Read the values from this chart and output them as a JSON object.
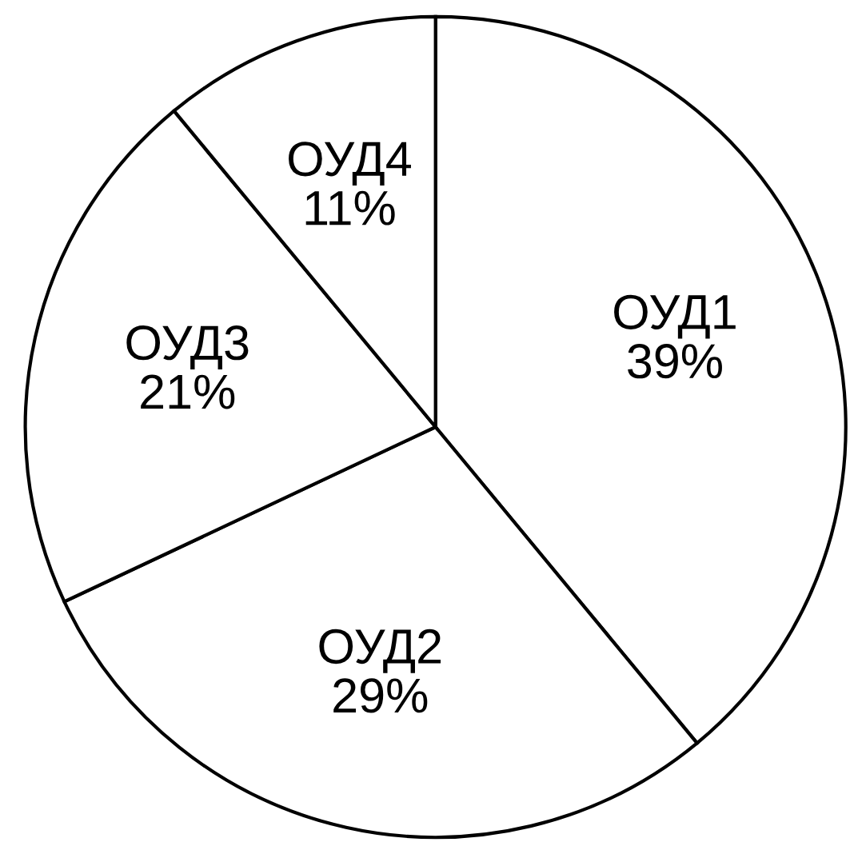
{
  "chart_data": {
    "type": "pie",
    "categories": [
      "ОУД1",
      "ОУД2",
      "ОУД3",
      "ОУД4"
    ],
    "values": [
      39,
      29,
      21,
      11
    ],
    "value_labels": [
      "39%",
      "29%",
      "21%",
      "11%"
    ],
    "colors": [
      "#ffffff",
      "#ffffff",
      "#ffffff",
      "#ffffff"
    ],
    "legend": false
  }
}
